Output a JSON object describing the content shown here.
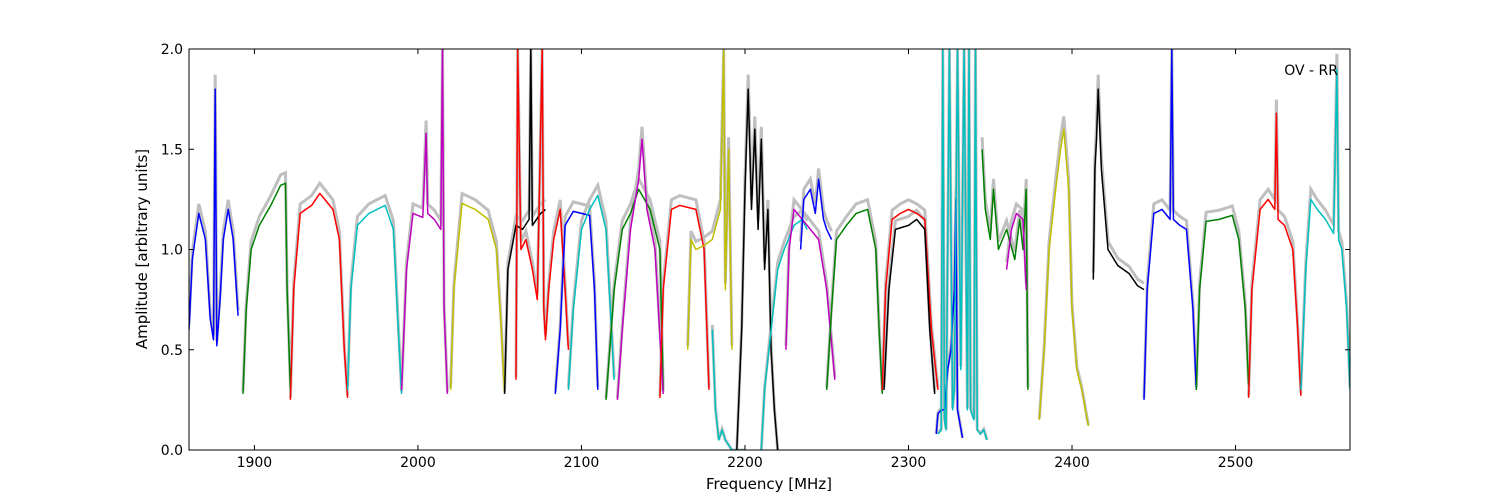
{
  "chart_data": {
    "type": "line",
    "title": "",
    "annotation": "OV - RR",
    "xlabel": "Frequency [MHz]",
    "ylabel": "Amplitude [arbitrary units]",
    "xlim": [
      1860,
      2570
    ],
    "ylim": [
      0,
      2.0
    ],
    "xticks": [
      {
        "value": 1900,
        "label": "1900"
      },
      {
        "value": 2000,
        "label": "2000"
      },
      {
        "value": 2100,
        "label": "2100"
      },
      {
        "value": 2200,
        "label": "2200"
      },
      {
        "value": 2300,
        "label": "2300"
      },
      {
        "value": 2400,
        "label": "2400"
      },
      {
        "value": 2500,
        "label": "2500"
      }
    ],
    "yticks": [
      {
        "value": 0.0,
        "label": "0.0"
      },
      {
        "value": 0.5,
        "label": "0.5"
      },
      {
        "value": 1.0,
        "label": "1.0"
      },
      {
        "value": 1.5,
        "label": "1.5"
      },
      {
        "value": 2.0,
        "label": "2.0"
      }
    ],
    "grid": false,
    "legend": "none",
    "reference_color": "#bfbfbf",
    "series": [
      {
        "color": "#0000ff",
        "x": [
          1860,
          1862,
          1866,
          1870,
          1873,
          1875,
          1876,
          1877,
          1879,
          1881,
          1884,
          1887,
          1890
        ],
        "y": [
          0.6,
          0.95,
          1.18,
          1.05,
          0.65,
          0.55,
          1.8,
          0.52,
          0.75,
          1.05,
          1.2,
          1.05,
          0.67
        ]
      },
      {
        "color": "#008000",
        "x": [
          1893,
          1895,
          1898,
          1903,
          1910,
          1916,
          1919,
          1920,
          1922
        ],
        "y": [
          0.28,
          0.7,
          1.0,
          1.12,
          1.22,
          1.32,
          1.33,
          0.8,
          0.3
        ]
      },
      {
        "color": "#ff0000",
        "x": [
          1922,
          1924,
          1928,
          1935,
          1940,
          1948,
          1952,
          1955,
          1957
        ],
        "y": [
          0.25,
          0.8,
          1.18,
          1.22,
          1.28,
          1.2,
          1.05,
          0.5,
          0.26
        ]
      },
      {
        "color": "#00bfbf",
        "x": [
          1957,
          1959,
          1963,
          1970,
          1980,
          1985,
          1988,
          1990
        ],
        "y": [
          0.3,
          0.8,
          1.12,
          1.18,
          1.22,
          1.1,
          0.6,
          0.28
        ]
      },
      {
        "color": "#bf00bf",
        "x": [
          1990,
          1993,
          1997,
          2003,
          2005,
          2006,
          2010,
          2014,
          2015,
          2016,
          2018
        ],
        "y": [
          0.3,
          0.9,
          1.18,
          1.16,
          1.58,
          1.18,
          1.15,
          1.1,
          2.0,
          0.7,
          0.28
        ]
      },
      {
        "color": "#bfbf00",
        "x": [
          2020,
          2022,
          2027,
          2035,
          2043,
          2048,
          2051,
          2053
        ],
        "y": [
          0.3,
          0.8,
          1.23,
          1.2,
          1.15,
          1.0,
          0.6,
          0.28
        ]
      },
      {
        "color": "#000000",
        "x": [
          2053,
          2055,
          2060,
          2064,
          2068,
          2069,
          2070,
          2075,
          2078
        ],
        "y": [
          0.28,
          0.9,
          1.12,
          1.1,
          1.15,
          2.0,
          1.12,
          1.18,
          1.2
        ]
      },
      {
        "color": "#ff0000",
        "x": [
          2060,
          2061,
          2063,
          2066,
          2070,
          2073,
          2076,
          2077,
          2078,
          2080,
          2083,
          2087,
          2090,
          2092
        ],
        "y": [
          0.35,
          2.0,
          1.0,
          1.05,
          0.9,
          0.75,
          2.0,
          0.7,
          0.55,
          0.8,
          1.05,
          1.2,
          0.8,
          0.5
        ]
      },
      {
        "color": "#0000ff",
        "x": [
          2084,
          2087,
          2090,
          2095,
          2105,
          2108,
          2110
        ],
        "y": [
          0.28,
          0.6,
          1.12,
          1.19,
          1.17,
          0.8,
          0.3
        ]
      },
      {
        "color": "#00bfbf",
        "x": [
          2092,
          2095,
          2100,
          2105,
          2110,
          2115,
          2120
        ],
        "y": [
          0.3,
          0.7,
          1.1,
          1.2,
          1.27,
          1.1,
          0.35
        ]
      },
      {
        "color": "#008000",
        "x": [
          2115,
          2120,
          2125,
          2130,
          2135,
          2142,
          2148,
          2150
        ],
        "y": [
          0.25,
          0.8,
          1.1,
          1.18,
          1.3,
          1.2,
          1.0,
          0.3
        ]
      },
      {
        "color": "#bf00bf",
        "x": [
          2122,
          2125,
          2130,
          2135,
          2137,
          2140,
          2145,
          2150
        ],
        "y": [
          0.25,
          0.6,
          1.1,
          1.35,
          1.55,
          1.2,
          1.0,
          0.28
        ]
      },
      {
        "color": "#ff0000",
        "x": [
          2148,
          2150,
          2155,
          2160,
          2170,
          2175,
          2178
        ],
        "y": [
          0.26,
          0.8,
          1.2,
          1.22,
          1.2,
          1.0,
          0.3
        ]
      },
      {
        "color": "#bfbf00",
        "x": [
          2165,
          2167,
          2170,
          2175,
          2180,
          2185,
          2187,
          2188,
          2190,
          2192
        ],
        "y": [
          0.5,
          1.05,
          1.0,
          1.02,
          1.05,
          1.2,
          2.0,
          0.8,
          1.5,
          0.5
        ]
      },
      {
        "color": "#00bfbf",
        "x": [
          2180,
          2182,
          2184,
          2186,
          2188,
          2192,
          2196,
          2200
        ],
        "y": [
          0.6,
          0.2,
          0.05,
          0.1,
          0.05,
          0.0,
          0.0,
          0.0
        ]
      },
      {
        "color": "#000000",
        "x": [
          2195,
          2198,
          2200,
          2202,
          2204,
          2206,
          2208,
          2210,
          2212,
          2214,
          2216,
          2218,
          2220
        ],
        "y": [
          0.0,
          0.6,
          1.3,
          1.8,
          1.2,
          1.6,
          1.1,
          1.55,
          0.9,
          1.2,
          0.5,
          0.2,
          0.0
        ]
      },
      {
        "color": "#00bfbf",
        "x": [
          2210,
          2212,
          2216,
          2220,
          2224,
          2230,
          2235,
          2238
        ],
        "y": [
          0.0,
          0.3,
          0.6,
          0.9,
          1.0,
          1.12,
          1.15,
          1.1
        ]
      },
      {
        "color": "#bf00bf",
        "x": [
          2225,
          2227,
          2230,
          2235,
          2240,
          2245,
          2250,
          2255
        ],
        "y": [
          0.5,
          1.0,
          1.2,
          1.15,
          1.1,
          1.05,
          0.8,
          0.35
        ]
      },
      {
        "color": "#0000ff",
        "x": [
          2234,
          2236,
          2240,
          2243,
          2245,
          2248,
          2250,
          2253
        ],
        "y": [
          1.0,
          1.25,
          1.3,
          1.18,
          1.35,
          1.15,
          1.1,
          1.05
        ]
      },
      {
        "color": "#008000",
        "x": [
          2250,
          2253,
          2256,
          2262,
          2268,
          2275,
          2280,
          2282,
          2284
        ],
        "y": [
          0.3,
          0.7,
          1.05,
          1.12,
          1.18,
          1.2,
          1.0,
          0.6,
          0.28
        ]
      },
      {
        "color": "#ff0000",
        "x": [
          2284,
          2286,
          2290,
          2295,
          2300,
          2305,
          2310,
          2314,
          2318
        ],
        "y": [
          0.3,
          0.8,
          1.15,
          1.18,
          1.2,
          1.18,
          1.15,
          0.6,
          0.3
        ]
      },
      {
        "color": "#000000",
        "x": [
          2285,
          2288,
          2292,
          2300,
          2305,
          2310,
          2313,
          2316
        ],
        "y": [
          0.3,
          0.8,
          1.1,
          1.12,
          1.15,
          1.1,
          0.6,
          0.28
        ]
      },
      {
        "color": "#0000ff",
        "x": [
          2317,
          2318,
          2320,
          2322,
          2324,
          2326,
          2328,
          2329,
          2330,
          2333
        ],
        "y": [
          0.08,
          0.18,
          0.2,
          0.2,
          0.4,
          0.5,
          0.8,
          1.25,
          0.2,
          0.06
        ]
      },
      {
        "color": "#00bfbf",
        "x": [
          2318,
          2320,
          2321,
          2322,
          2323,
          2325,
          2327,
          2328,
          2330,
          2332,
          2334,
          2336,
          2337,
          2338,
          2340,
          2341,
          2342,
          2344,
          2346,
          2348
        ],
        "y": [
          0.08,
          0.1,
          2.0,
          0.15,
          0.1,
          2.0,
          0.2,
          0.3,
          2.0,
          0.4,
          2.0,
          0.2,
          2.0,
          0.2,
          0.15,
          2.0,
          0.1,
          0.08,
          0.1,
          0.05
        ]
      },
      {
        "color": "#008000",
        "x": [
          2345,
          2347,
          2350,
          2352,
          2355,
          2360,
          2365,
          2368,
          2370,
          2372,
          2373
        ],
        "y": [
          1.5,
          1.2,
          1.05,
          1.3,
          1.0,
          1.1,
          0.95,
          1.15,
          1.0,
          1.3,
          0.3
        ]
      },
      {
        "color": "#bf00bf",
        "x": [
          2360,
          2363,
          2366,
          2370,
          2372
        ],
        "y": [
          0.9,
          1.1,
          1.18,
          1.15,
          0.8
        ]
      },
      {
        "color": "#bfbf00",
        "x": [
          2380,
          2383,
          2386,
          2390,
          2393,
          2395,
          2398,
          2400,
          2403,
          2406,
          2410
        ],
        "y": [
          0.15,
          0.5,
          1.0,
          1.3,
          1.5,
          1.6,
          1.3,
          0.7,
          0.4,
          0.3,
          0.12
        ]
      },
      {
        "color": "#000000",
        "x": [
          2413,
          2414,
          2415,
          2416,
          2418,
          2422,
          2428,
          2435,
          2440,
          2444
        ],
        "y": [
          0.85,
          1.4,
          1.55,
          1.8,
          1.4,
          1.0,
          0.92,
          0.88,
          0.82,
          0.8
        ]
      },
      {
        "color": "#0000ff",
        "x": [
          2444,
          2446,
          2450,
          2455,
          2460,
          2461,
          2462,
          2466,
          2470,
          2474,
          2476
        ],
        "y": [
          0.25,
          0.8,
          1.18,
          1.2,
          1.15,
          2.0,
          1.15,
          1.12,
          1.1,
          0.7,
          0.3
        ]
      },
      {
        "color": "#008000",
        "x": [
          2476,
          2478,
          2482,
          2490,
          2498,
          2502,
          2506,
          2508
        ],
        "y": [
          0.3,
          0.8,
          1.14,
          1.15,
          1.17,
          1.05,
          0.7,
          0.32
        ]
      },
      {
        "color": "#ff0000",
        "x": [
          2508,
          2510,
          2515,
          2520,
          2524,
          2525,
          2526,
          2530,
          2535,
          2538,
          2540
        ],
        "y": [
          0.26,
          0.8,
          1.2,
          1.25,
          1.2,
          1.68,
          1.15,
          1.12,
          1.0,
          0.6,
          0.27
        ]
      },
      {
        "color": "#00bfbf",
        "x": [
          2540,
          2543,
          2546,
          2550,
          2555,
          2560,
          2562,
          2563,
          2565,
          2568,
          2570
        ],
        "y": [
          0.3,
          0.9,
          1.25,
          1.2,
          1.15,
          1.08,
          1.9,
          1.05,
          1.0,
          0.7,
          0.3
        ]
      }
    ]
  }
}
